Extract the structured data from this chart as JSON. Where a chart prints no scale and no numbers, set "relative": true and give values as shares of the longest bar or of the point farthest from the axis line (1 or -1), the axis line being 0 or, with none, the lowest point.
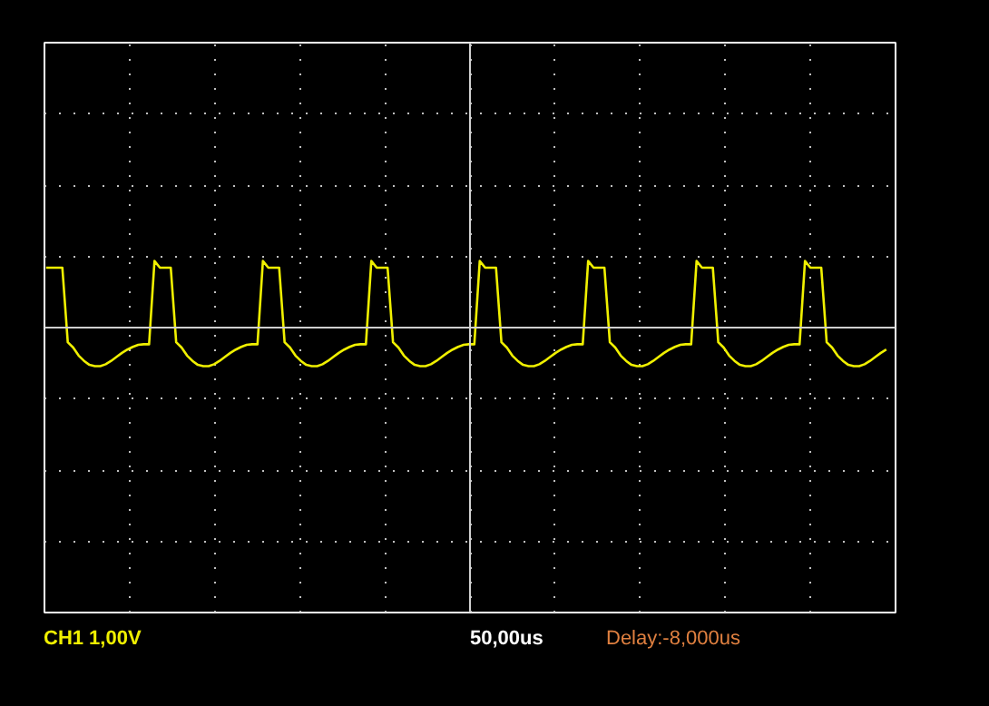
{
  "chart_data": {
    "type": "line",
    "relative": true,
    "grid": true,
    "line_style": "solid",
    "marker": "none",
    "color": "#f0f000",
    "categories": [
      null,
      null,
      null,
      null,
      null,
      null,
      null,
      null,
      null,
      null,
      null,
      null,
      null,
      null,
      null,
      null,
      null,
      null,
      null,
      null,
      null,
      null,
      null,
      null,
      null,
      null,
      null,
      null,
      null,
      null,
      null,
      null,
      null,
      null,
      null,
      null,
      null,
      null,
      null,
      null,
      null,
      null,
      null,
      null,
      null,
      null,
      null,
      null,
      null,
      null,
      null,
      null,
      null,
      null,
      null,
      null,
      null,
      null,
      null,
      null,
      null,
      null,
      null,
      null,
      null,
      null,
      null,
      null,
      null,
      null,
      null,
      null,
      null,
      null,
      null,
      null,
      null,
      null,
      null,
      null,
      null,
      null,
      null,
      null,
      null,
      null,
      null,
      null,
      null,
      null,
      null,
      null,
      null,
      null,
      null,
      null,
      null,
      null,
      null,
      null,
      null,
      null,
      null,
      null,
      null,
      null,
      null,
      null,
      null,
      null,
      null,
      null,
      null,
      null,
      null,
      null,
      null,
      null,
      null,
      null,
      null,
      null,
      null,
      null,
      null,
      null,
      null,
      null,
      null,
      null,
      null,
      null,
      null,
      null,
      null,
      null,
      null,
      null,
      null,
      null,
      null,
      null,
      null,
      null,
      null,
      null,
      null,
      null,
      null,
      null,
      null,
      null,
      null,
      null,
      null,
      null
    ],
    "values": [
      0.9,
      0.9,
      0.9,
      0.9,
      -0.22,
      -0.3,
      -0.42,
      -0.5,
      -0.56,
      -0.58,
      -0.58,
      -0.55,
      -0.5,
      -0.44,
      -0.38,
      -0.33,
      -0.29,
      -0.26,
      -0.25,
      -0.25,
      1.0,
      0.9,
      0.9,
      0.9,
      -0.22,
      -0.3,
      -0.42,
      -0.5,
      -0.56,
      -0.58,
      -0.58,
      -0.55,
      -0.5,
      -0.44,
      -0.38,
      -0.33,
      -0.29,
      -0.26,
      -0.25,
      -0.25,
      1.0,
      0.9,
      0.9,
      0.9,
      -0.22,
      -0.3,
      -0.42,
      -0.5,
      -0.56,
      -0.58,
      -0.58,
      -0.55,
      -0.5,
      -0.44,
      -0.38,
      -0.33,
      -0.29,
      -0.26,
      -0.25,
      -0.25,
      1.0,
      0.9,
      0.9,
      0.9,
      -0.22,
      -0.3,
      -0.42,
      -0.5,
      -0.56,
      -0.58,
      -0.58,
      -0.55,
      -0.5,
      -0.44,
      -0.38,
      -0.33,
      -0.29,
      -0.26,
      -0.25,
      -0.25,
      1.0,
      0.9,
      0.9,
      0.9,
      -0.22,
      -0.3,
      -0.42,
      -0.5,
      -0.56,
      -0.58,
      -0.58,
      -0.55,
      -0.5,
      -0.44,
      -0.38,
      -0.33,
      -0.29,
      -0.26,
      -0.25,
      -0.25,
      1.0,
      0.9,
      0.9,
      0.9,
      -0.22,
      -0.3,
      -0.42,
      -0.5,
      -0.56,
      -0.58,
      -0.58,
      -0.55,
      -0.5,
      -0.44,
      -0.38,
      -0.33,
      -0.29,
      -0.26,
      -0.25,
      -0.25,
      1.0,
      0.9,
      0.9,
      0.9,
      -0.22,
      -0.3,
      -0.42,
      -0.5,
      -0.56,
      -0.58,
      -0.58,
      -0.55,
      -0.5,
      -0.44,
      -0.38,
      -0.33,
      -0.29,
      -0.26,
      -0.25,
      -0.25,
      1.0,
      0.9,
      0.9,
      0.9,
      -0.22,
      -0.3,
      -0.42,
      -0.5,
      -0.56,
      -0.58,
      -0.58,
      -0.55,
      -0.5,
      -0.44,
      -0.38,
      -0.33
    ],
    "annotations": [
      "CH1 1,00V",
      "50,00us",
      "Delay:-8,000us"
    ]
  }
}
